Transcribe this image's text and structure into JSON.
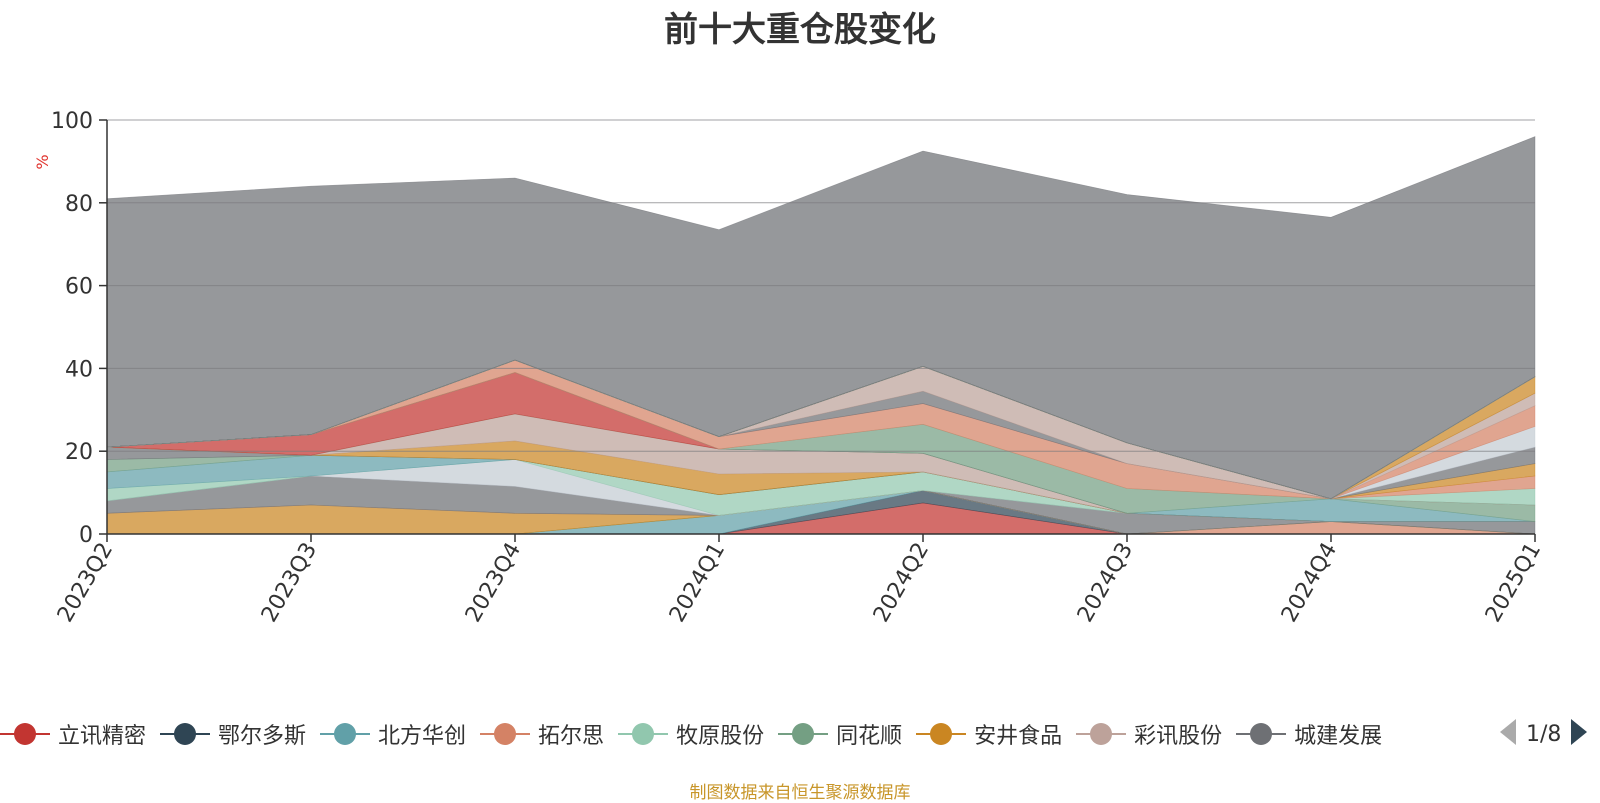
{
  "chart_data": {
    "type": "area",
    "title": "前十大重仓股变化",
    "ylabel": "%",
    "xlabel": "",
    "ylim": [
      0,
      100
    ],
    "yticks": [
      0,
      20,
      40,
      60,
      80,
      100
    ],
    "stacked": true,
    "grid": true,
    "legend_position": "bottom",
    "categories": [
      "2023Q2",
      "2023Q3",
      "2023Q4",
      "2024Q1",
      "2024Q2",
      "2024Q3",
      "2024Q4",
      "2025Q1"
    ],
    "series": [
      {
        "name": "立讯精密",
        "color": "#c23531",
        "values": [
          0,
          0,
          0,
          0,
          7.5,
          0,
          0,
          0
        ]
      },
      {
        "name": "鄂尔多斯",
        "color": "#2f4554",
        "values": [
          0,
          0,
          0,
          0,
          3,
          0,
          0,
          0
        ]
      },
      {
        "name": "北方华创",
        "color": "#61a0a8",
        "values": [
          0,
          0,
          0,
          4.5,
          0,
          0,
          0,
          0
        ]
      },
      {
        "name": "拓尔思",
        "color": "#d48265",
        "values": [
          0,
          0,
          0,
          0,
          0,
          0,
          3,
          0
        ]
      },
      {
        "name": "牧原股份",
        "color": "#91c7ae",
        "values": [
          0,
          0,
          0,
          0,
          0,
          0,
          0,
          0
        ]
      },
      {
        "name": "同花顺",
        "color": "#749f83",
        "values": [
          0,
          0,
          0,
          0,
          0,
          0,
          0,
          0
        ]
      },
      {
        "name": "安井食品",
        "color": "#ca8622",
        "values": [
          5,
          7,
          5,
          0,
          0,
          0,
          0,
          0
        ]
      },
      {
        "name": "彩讯股份",
        "color": "#bda29a",
        "values": [
          0,
          0,
          0,
          0,
          0,
          0,
          0,
          0
        ]
      },
      {
        "name": "城建发展",
        "color": "#6e7074",
        "values": [
          3,
          7,
          6.5,
          0,
          0,
          5,
          0,
          3
        ]
      },
      {
        "name": "",
        "color": "#c4ccd3",
        "values": [
          0,
          0,
          6.5,
          0,
          0,
          0,
          0,
          0
        ]
      },
      {
        "name": "",
        "color": "#91c7ae",
        "values": [
          3,
          0,
          0,
          5,
          4.5,
          0,
          0,
          0
        ]
      },
      {
        "name": "",
        "color": "#61a0a8",
        "values": [
          4,
          5,
          0,
          0,
          0,
          0,
          0,
          0
        ]
      },
      {
        "name": "",
        "color": "#749f83",
        "values": [
          3,
          0,
          0,
          0,
          0,
          0,
          0,
          0
        ]
      },
      {
        "name": "",
        "color": "#6e7074",
        "values": [
          3,
          0,
          0,
          0,
          0,
          0,
          0,
          0
        ]
      },
      {
        "name": "",
        "color": "#ca8622",
        "values": [
          0,
          0,
          4.5,
          5,
          0,
          0,
          0,
          0
        ]
      },
      {
        "name": "",
        "color": "#bda29a",
        "values": [
          0,
          0,
          6.5,
          6,
          4.5,
          0,
          0,
          0
        ]
      },
      {
        "name": "",
        "color": "#91c7ae",
        "values": [
          0,
          0,
          0,
          0,
          0,
          0,
          0,
          0
        ]
      },
      {
        "name": "",
        "color": "#c23531",
        "values": [
          0,
          5,
          10,
          0,
          0,
          0,
          0,
          0
        ]
      },
      {
        "name": "",
        "color": "#61a0a8",
        "values": [
          0,
          0,
          0,
          0,
          0,
          0,
          5.5,
          0
        ]
      },
      {
        "name": "",
        "color": "#749f83",
        "values": [
          0,
          0,
          0,
          0,
          7,
          6,
          0,
          4
        ]
      },
      {
        "name": "",
        "color": "#d48265",
        "values": [
          0,
          0,
          3,
          3,
          5,
          6,
          0,
          0
        ]
      },
      {
        "name": "",
        "color": "#6e7074",
        "values": [
          0,
          0,
          0,
          0,
          3,
          0,
          0,
          0
        ]
      },
      {
        "name": "",
        "color": "#bda29a",
        "values": [
          0,
          0,
          0,
          0,
          6,
          5,
          0,
          0
        ]
      },
      {
        "name": "",
        "color": "#91c7ae",
        "values": [
          0,
          0,
          0,
          0,
          0,
          0,
          0,
          4
        ]
      },
      {
        "name": "",
        "color": "#d48265",
        "values": [
          0,
          0,
          0,
          0,
          0,
          0,
          0,
          3
        ]
      },
      {
        "name": "",
        "color": "#ca8622",
        "values": [
          0,
          0,
          0,
          0,
          0,
          0,
          0,
          3
        ]
      },
      {
        "name": "",
        "color": "#6e7074",
        "values": [
          0,
          0,
          0,
          0,
          0,
          0,
          0,
          4
        ]
      },
      {
        "name": "",
        "color": "#c4ccd3",
        "values": [
          0,
          0,
          0,
          0,
          0,
          0,
          0,
          5
        ]
      },
      {
        "name": "",
        "color": "#d48265",
        "values": [
          0,
          0,
          0,
          0,
          0,
          0,
          0,
          5
        ]
      },
      {
        "name": "",
        "color": "#bda29a",
        "values": [
          0,
          0,
          0,
          0,
          0,
          0,
          0,
          3
        ]
      },
      {
        "name": "",
        "color": "#ca8622",
        "values": [
          0,
          0,
          0,
          0,
          0,
          0,
          0,
          4
        ]
      },
      {
        "name": "",
        "color": "#6e7074",
        "values": [
          0,
          0,
          0,
          0,
          0,
          0,
          0,
          0
        ]
      },
      {
        "name": "",
        "color": "#91c7ae",
        "values": [
          0,
          0,
          0,
          0,
          0,
          0,
          0,
          0
        ]
      },
      {
        "name": "",
        "color": "#c23531",
        "values": [
          0,
          0,
          0,
          0,
          0,
          0,
          0,
          0
        ]
      },
      {
        "name": "",
        "color": "#61a0a8",
        "values": [
          0,
          0,
          0,
          0,
          0,
          0,
          0,
          0
        ]
      },
      {
        "name": "",
        "color": "#2f4554",
        "values": [
          0,
          0,
          0,
          0,
          0,
          0,
          0,
          0
        ]
      },
      {
        "name": "",
        "color": "#d48265",
        "values": [
          0,
          0,
          0,
          0,
          0,
          0,
          0,
          0
        ]
      },
      {
        "name": "",
        "color": "#749f83",
        "values": [
          0,
          0,
          0,
          0,
          0,
          0,
          0,
          0
        ]
      },
      {
        "name": "",
        "color": "#c4ccd3",
        "values": [
          0,
          0,
          0,
          0,
          0,
          0,
          0,
          0
        ]
      },
      {
        "name": "",
        "color": "#6e7074",
        "values": [
          0,
          0,
          0,
          0,
          0,
          0,
          0,
          0
        ]
      },
      {
        "name": "",
        "color": "#bda29a",
        "values": [
          0,
          0,
          0,
          0,
          0,
          0,
          0,
          0
        ]
      },
      {
        "name": "",
        "color": "#91c7ae",
        "values": [
          0,
          0,
          0,
          0,
          0,
          0,
          0,
          0
        ]
      },
      {
        "name": "",
        "color": "#6e7074",
        "values": [
          60,
          60,
          44,
          50,
          52,
          60,
          68,
          58
        ]
      }
    ]
  },
  "legend": {
    "visible_items": [
      {
        "label": "立讯精密",
        "color": "#c23531"
      },
      {
        "label": "鄂尔多斯",
        "color": "#2f4554"
      },
      {
        "label": "北方华创",
        "color": "#61a0a8"
      },
      {
        "label": "拓尔思",
        "color": "#d48265"
      },
      {
        "label": "牧原股份",
        "color": "#91c7ae"
      },
      {
        "label": "同花顺",
        "color": "#749f83"
      },
      {
        "label": "安井食品",
        "color": "#ca8622"
      },
      {
        "label": "彩讯股份",
        "color": "#bda29a"
      },
      {
        "label": "城建发展",
        "color": "#6e7074"
      }
    ],
    "page_indicator": "1/8",
    "prev_icon": "triangle-left-icon",
    "next_icon": "triangle-right-icon"
  },
  "footer": {
    "source_note": "制图数据来自恒生聚源数据库"
  },
  "colors": {
    "axis": "#333333",
    "grid": "#7a7b7f",
    "ylabel": "#e0322c",
    "source_note": "#c8962a",
    "pager_disabled": "#aaaaaa",
    "pager_active": "#2f4554"
  }
}
